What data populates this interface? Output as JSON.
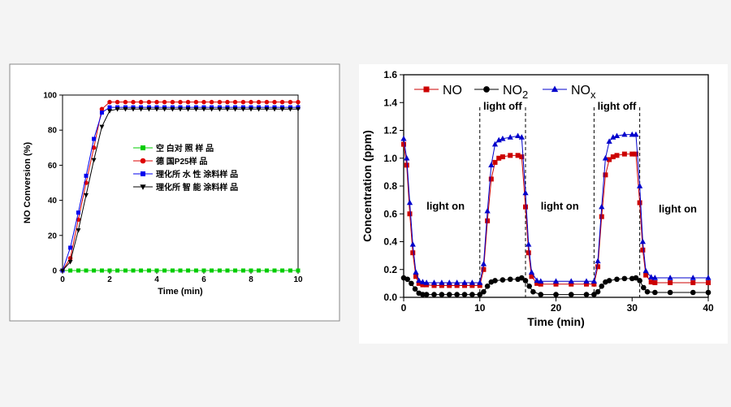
{
  "chart_data": [
    {
      "type": "line",
      "title": "",
      "xlabel": "Time (min)",
      "ylabel": "NO Conversion (%)",
      "xlim": [
        0,
        10
      ],
      "ylim": [
        0,
        100
      ],
      "xticks": [
        0,
        2,
        4,
        6,
        8,
        10
      ],
      "yticks": [
        0,
        20,
        40,
        60,
        80,
        100
      ],
      "grid": false,
      "legend_position": "center-right",
      "series": [
        {
          "name": "空 白对 照 样 品",
          "color": "#00cc00",
          "marker": "square",
          "x": [
            0,
            0.33,
            0.67,
            1,
            1.33,
            1.67,
            2,
            2.33,
            2.67,
            3,
            3.33,
            3.67,
            4,
            4.33,
            4.67,
            5,
            5.33,
            5.67,
            6,
            6.33,
            6.67,
            7,
            7.33,
            7.67,
            8,
            8.33,
            8.67,
            9,
            9.33,
            9.67,
            10
          ],
          "y": [
            0,
            0,
            0,
            0,
            0,
            0,
            0,
            0,
            0,
            0,
            0,
            0,
            0,
            0,
            0,
            0,
            0,
            0,
            0,
            0,
            0,
            0,
            0,
            0,
            0,
            0,
            0,
            0,
            0,
            0,
            0
          ]
        },
        {
          "name": "德 国P25样 品",
          "color": "#dd0000",
          "marker": "circle",
          "x": [
            0,
            0.33,
            0.67,
            1,
            1.33,
            1.67,
            2,
            2.33,
            2.67,
            3,
            3.33,
            3.67,
            4,
            4.33,
            4.67,
            5,
            5.33,
            5.67,
            6,
            6.33,
            6.67,
            7,
            7.33,
            7.67,
            8,
            8.33,
            8.67,
            9,
            9.33,
            9.67,
            10
          ],
          "y": [
            0,
            7,
            29,
            50,
            70,
            92,
            96,
            96,
            96,
            96,
            96,
            96,
            96,
            96,
            96,
            96,
            96,
            96,
            96,
            96,
            96,
            96,
            96,
            96,
            96,
            96,
            96,
            96,
            96,
            96,
            96
          ]
        },
        {
          "name": "理化所 水 性 涂料样 品",
          "color": "#0000ee",
          "marker": "square",
          "x": [
            0,
            0.33,
            0.67,
            1,
            1.33,
            1.67,
            2,
            2.33,
            2.67,
            3,
            3.33,
            3.67,
            4,
            4.33,
            4.67,
            5,
            5.33,
            5.67,
            6,
            6.33,
            6.67,
            7,
            7.33,
            7.67,
            8,
            8.33,
            8.67,
            9,
            9.33,
            9.67,
            10
          ],
          "y": [
            0,
            13,
            33,
            54,
            75,
            90,
            93,
            93,
            93,
            93,
            93,
            93,
            93,
            93,
            93,
            93,
            93,
            93,
            93,
            93,
            93,
            93,
            93,
            93,
            93,
            93,
            93,
            93,
            93,
            93,
            93
          ]
        },
        {
          "name": "理化所 智 能 涂料样 品",
          "color": "#000000",
          "marker": "triangle-down",
          "x": [
            0,
            0.33,
            0.67,
            1,
            1.33,
            1.67,
            2,
            2.33,
            2.67,
            3,
            3.33,
            3.67,
            4,
            4.33,
            4.67,
            5,
            5.33,
            5.67,
            6,
            6.33,
            6.67,
            7,
            7.33,
            7.67,
            8,
            8.33,
            8.67,
            9,
            9.33,
            9.67,
            10
          ],
          "y": [
            0,
            5,
            23,
            43,
            63,
            82,
            91,
            92,
            92,
            92,
            92,
            92,
            92,
            92,
            92,
            92,
            92,
            92,
            92,
            92,
            92,
            92,
            92,
            92,
            92,
            92,
            92,
            92,
            92,
            92,
            92
          ]
        }
      ]
    },
    {
      "type": "line",
      "title": "",
      "xlabel": "Time (min)",
      "ylabel": "Concentration (ppm)",
      "xlim": [
        0,
        40
      ],
      "ylim": [
        0,
        1.6
      ],
      "xticks": [
        0,
        10,
        20,
        30,
        40
      ],
      "yticks": [
        0.0,
        0.2,
        0.4,
        0.6,
        0.8,
        1.0,
        1.2,
        1.4,
        1.6
      ],
      "ytick_labels": [
        "0.0",
        "0.2",
        "0.4",
        "0.6",
        "0.8",
        "1.0",
        "1.2",
        "1.4",
        "1.6"
      ],
      "grid": false,
      "legend_position": "top-left",
      "series": [
        {
          "name": "NO",
          "color": "#cc0000",
          "marker": "square",
          "x": [
            0,
            0.4,
            0.8,
            1.2,
            1.6,
            2.0,
            2.5,
            3,
            4,
            5,
            6,
            7,
            8,
            9,
            10,
            10.5,
            11,
            11.5,
            12,
            12.5,
            13,
            14,
            15,
            15.5,
            16,
            16.4,
            16.8,
            17.5,
            18,
            20,
            22,
            24,
            25,
            25.5,
            26,
            26.5,
            27,
            27.5,
            28,
            29,
            30,
            30.5,
            31,
            31.4,
            31.8,
            32.5,
            33,
            35,
            38,
            40
          ],
          "y": [
            1.1,
            0.95,
            0.6,
            0.32,
            0.15,
            0.1,
            0.09,
            0.09,
            0.085,
            0.085,
            0.085,
            0.085,
            0.085,
            0.085,
            0.085,
            0.2,
            0.55,
            0.85,
            0.97,
            1.0,
            1.01,
            1.02,
            1.02,
            1.01,
            0.65,
            0.32,
            0.15,
            0.1,
            0.095,
            0.095,
            0.095,
            0.095,
            0.095,
            0.22,
            0.58,
            0.88,
            0.99,
            1.01,
            1.02,
            1.03,
            1.03,
            1.03,
            0.68,
            0.34,
            0.16,
            0.11,
            0.105,
            0.105,
            0.105,
            0.105
          ]
        },
        {
          "name": "NO2",
          "color": "#000000",
          "marker": "circle",
          "x": [
            0,
            0.5,
            1,
            1.5,
            2,
            2.5,
            3,
            4,
            5,
            6,
            7,
            8,
            9,
            10,
            10.5,
            11,
            11.5,
            12,
            13,
            14,
            15,
            15.5,
            16,
            16.5,
            17,
            18,
            20,
            22,
            24,
            25,
            25.5,
            26,
            26.5,
            27,
            28,
            29,
            30,
            30.5,
            31,
            31.5,
            32,
            33,
            35,
            38,
            40
          ],
          "y": [
            0.14,
            0.13,
            0.1,
            0.06,
            0.03,
            0.02,
            0.02,
            0.02,
            0.02,
            0.02,
            0.02,
            0.02,
            0.02,
            0.02,
            0.04,
            0.08,
            0.11,
            0.12,
            0.125,
            0.13,
            0.13,
            0.14,
            0.12,
            0.08,
            0.04,
            0.02,
            0.02,
            0.02,
            0.02,
            0.02,
            0.04,
            0.08,
            0.11,
            0.12,
            0.13,
            0.135,
            0.135,
            0.14,
            0.12,
            0.07,
            0.04,
            0.035,
            0.035,
            0.035,
            0.035
          ]
        },
        {
          "name": "NOx",
          "color": "#0000cc",
          "marker": "triangle",
          "x": [
            0,
            0.4,
            0.8,
            1.2,
            1.6,
            2.0,
            2.5,
            3,
            4,
            5,
            6,
            7,
            8,
            9,
            10,
            10.5,
            11,
            11.5,
            12,
            12.5,
            13,
            14,
            15,
            15.5,
            16,
            16.4,
            16.8,
            17.5,
            18,
            20,
            22,
            24,
            25,
            25.5,
            26,
            26.5,
            27,
            27.5,
            28,
            29,
            30,
            30.5,
            31,
            31.4,
            31.8,
            32.5,
            33,
            35,
            38,
            40
          ],
          "y": [
            1.14,
            1.0,
            0.68,
            0.38,
            0.18,
            0.12,
            0.11,
            0.105,
            0.105,
            0.105,
            0.105,
            0.105,
            0.105,
            0.105,
            0.105,
            0.24,
            0.62,
            0.95,
            1.1,
            1.13,
            1.14,
            1.15,
            1.16,
            1.15,
            0.75,
            0.38,
            0.18,
            0.12,
            0.115,
            0.115,
            0.115,
            0.115,
            0.115,
            0.26,
            0.65,
            1.0,
            1.12,
            1.15,
            1.16,
            1.17,
            1.17,
            1.17,
            0.8,
            0.4,
            0.19,
            0.145,
            0.14,
            0.14,
            0.14,
            0.14
          ]
        }
      ],
      "vlines": [
        10,
        16,
        25,
        31
      ],
      "annotations": [
        {
          "text": "light on",
          "x": 5.5,
          "y": 0.63
        },
        {
          "text": "light off",
          "x": 13,
          "y": 1.35
        },
        {
          "text": "light on",
          "x": 20.5,
          "y": 0.63
        },
        {
          "text": "light off",
          "x": 28,
          "y": 1.35
        },
        {
          "text": "light on",
          "x": 36,
          "y": 0.61
        }
      ]
    }
  ]
}
